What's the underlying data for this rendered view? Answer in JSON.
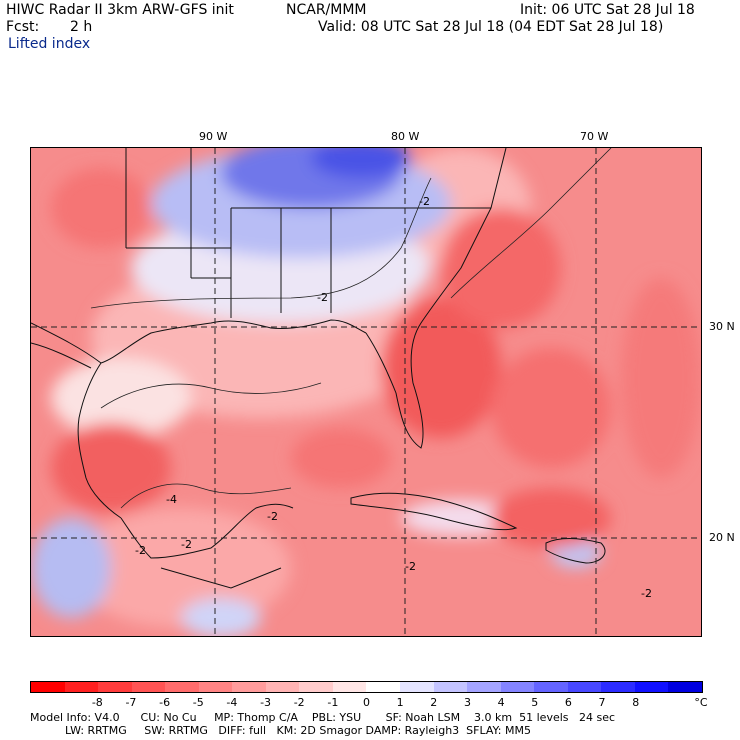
{
  "header": {
    "model_title": "HIWC Radar II 3km ARW-GFS init",
    "org": "NCAR/MMM",
    "init": "Init: 06 UTC Sat 28 Jul 18",
    "fcst_label": "Fcst:",
    "fcst_value": "2 h",
    "valid": "Valid: 08 UTC Sat 28 Jul 18 (04 EDT Sat 28 Jul 18)",
    "field": "Lifted index"
  },
  "map": {
    "lon_labels": [
      "90 W",
      "80 W",
      "70 W"
    ],
    "lat_labels": [
      "30 N",
      "20 N"
    ],
    "contour_labels": [
      "-2",
      "-2",
      "-2",
      "-2",
      "-2",
      "-2",
      "-2",
      "-4"
    ],
    "colors": {
      "deep_red": "#f04a4a",
      "red": "#f57272",
      "salmon": "#f99a9a",
      "light_pink": "#fcc8c8",
      "white": "#ffffff",
      "light_blue": "#d0d4f8",
      "blue": "#8f98f0",
      "deep_blue": "#3b44e6"
    }
  },
  "colorbar": {
    "labels": [
      "-8",
      "-7",
      "-6",
      "-5",
      "-4",
      "-3",
      "-2",
      "-1",
      "0",
      "1",
      "2",
      "3",
      "4",
      "5",
      "6",
      "7",
      "8"
    ],
    "unit": "°C",
    "colors": [
      "#ff0000",
      "#ff2020",
      "#ff3c3c",
      "#ff5454",
      "#ff6c6c",
      "#ff8484",
      "#ff9c9c",
      "#ffb4b4",
      "#ffcccc",
      "#ffe6e6",
      "#ffffff",
      "#e4e4ff",
      "#c4c4ff",
      "#a4a4ff",
      "#8484ff",
      "#6464ff",
      "#4848ff",
      "#2c2cff",
      "#1010ff",
      "#0000e0"
    ]
  },
  "model_info": {
    "line1": "Model Info: V4.0      CU: No Cu     MP: Thomp C/A    PBL: YSU       SF: Noah LSM    3.0 km  51 levels   24 sec",
    "line2": "          LW: RRTMG     SW: RRTMG   DIFF: full   KM: 2D Smagor DAMP: Rayleigh3  SFLAY: MM5"
  }
}
